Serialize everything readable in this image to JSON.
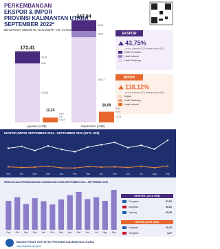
{
  "header": {
    "title_lines": [
      "PERKEMBANGAN",
      "EKSPOR & IMPOR",
      "PROVINSI KALIMANTAN UTARA",
      "SEPTEMBER 2022*"
    ],
    "subtitle": "Berita Resmi Statistik No. 51/11/65/Th. VIII, 01 November 2022"
  },
  "export_box": {
    "title": "EKSPOR",
    "change": "43,75%",
    "note": "(m-to-m September 2022 terhadap Agustus 2022)"
  },
  "import_box": {
    "title": "IMPOR",
    "change": "118,12%",
    "note": "(m-to-m September 2022 terhadap Agustus 2022)"
  },
  "chart_data": [
    {
      "type": "stacked_bar",
      "categories": [
        "Agustus (US$)",
        "September (US$)"
      ],
      "groups": [
        {
          "totals": [
            172.41,
            247.84
          ],
          "total_labels": [
            "172,41",
            "247,84"
          ],
          "series": [
            {
              "name": "Hasil Tambang",
              "color": "#e4d8f1",
              "values": [
                142.93,
                206.37
              ],
              "value_labels": [
                "142,93",
                "206,37"
              ]
            },
            {
              "name": "Hasil Industri",
              "color": "#9b82c4",
              "values": [
                0.02,
                15.07
              ],
              "value_labels": [
                "0,02",
                "15,07"
              ]
            },
            {
              "name": "Hasil Pertanian",
              "color": "#4a2b7e",
              "values": [
                29.46,
                26.4
              ],
              "value_labels": [
                "29,46",
                "26,40"
              ]
            }
          ]
        },
        {
          "totals": [
            12.24,
            26.69
          ],
          "total_labels": [
            "12,24",
            "26,69"
          ],
          "series": [
            {
              "name": "Hasil Industri",
              "color": "#e8672e",
              "values": [
                12.07,
                25.72
              ],
              "value_labels": [
                "12,07",
                "25,72"
              ]
            },
            {
              "name": "Hasil Tambang",
              "color": "#f2a47c",
              "values": [
                0.17,
                0.47
              ],
              "value_labels": [
                "0,17",
                "0,47"
              ]
            },
            {
              "name": "Migas",
              "color": "#f8d6c2",
              "values": [
                0.0,
                0.5
              ],
              "value_labels": [
                "0,00",
                "0,50"
              ]
            }
          ]
        }
      ]
    },
    {
      "type": "line",
      "title": "EKSPOR-IMPOR SEPTEMBER 2021—SEPTEMBER 2022 (JUTA US$)",
      "categories": [
        "Sep",
        "Okt",
        "Nov",
        "Des",
        "Jan",
        "Feb",
        "Mar",
        "Apr",
        "Mei",
        "Jun",
        "Jul",
        "Agu",
        "Sep"
      ],
      "series": [
        {
          "color": "#ffffff",
          "values": [
            180,
            195,
            160,
            200,
            170,
            150,
            190,
            210,
            230,
            185,
            205,
            172.41,
            247.84
          ]
        },
        {
          "color": "#f08a3c",
          "values": [
            20,
            15,
            18,
            25,
            12,
            10,
            22,
            18,
            20,
            15,
            25,
            12.24,
            26.69
          ]
        }
      ]
    },
    {
      "type": "bar",
      "title": "NERACA NILAI PERDAGANGAN KALIMANTAN UTARA SEPTEMBER 2021—SEPTEMBER 2022",
      "categories": [
        "Sep",
        "Okt",
        "Nov",
        "Des",
        "Jan",
        "Feb",
        "Mar",
        "Apr",
        "Mei",
        "Jun",
        "Jul",
        "Agu",
        "Sep"
      ],
      "values": [
        160,
        180,
        142,
        175,
        158,
        140,
        168,
        192,
        210,
        170,
        180,
        160.17,
        221.15
      ],
      "color": "#8d7cc8"
    }
  ],
  "export_countries": {
    "title": "EKSPOR (JUTA US$)",
    "rows": [
      {
        "country": "Tiongkok",
        "value": "97,51"
      },
      {
        "country": "Malaysia",
        "value": "45,20"
      },
      {
        "country": "Jepang",
        "value": "32,18"
      }
    ]
  },
  "import_countries": {
    "title": "IMPOR (JUTA US$)",
    "rows": [
      {
        "country": "Malaysia",
        "value": "20,13"
      },
      {
        "country": "Tiongkok",
        "value": "4,27"
      }
    ]
  },
  "footer": {
    "org": "BADAN PUSAT STATISTIK PROVINSI KALIMANTAN UTARA",
    "url": "https://kaltara.bps.go.id"
  }
}
